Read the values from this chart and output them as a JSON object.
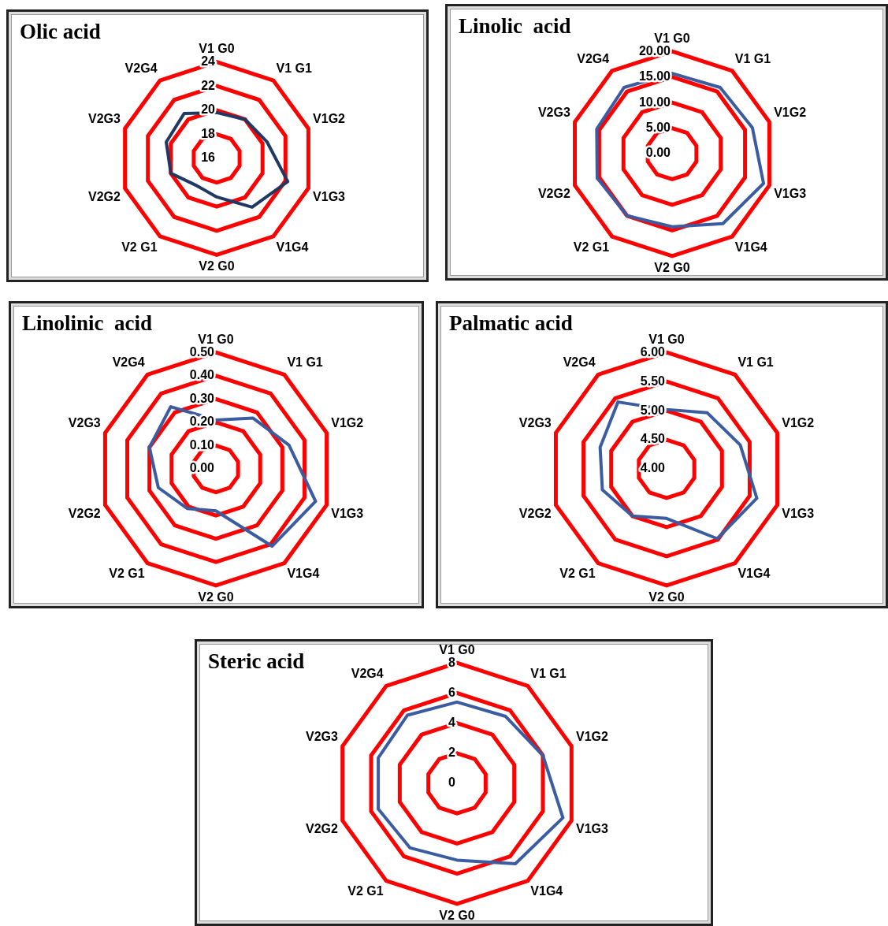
{
  "chart_data": [
    {
      "type": "radar",
      "title": "Olic acid",
      "categories": [
        "V1 G0",
        "V1 G1",
        "V1G2",
        "V1G3",
        "V1G4",
        "V2 G0",
        "V2 G1",
        "V2G2",
        "V2G3",
        "V2G4"
      ],
      "series": [
        {
          "color": "#1f3864",
          "values": [
            19.8,
            20.0,
            20.4,
            22.2,
            21.0,
            19.2,
            18.8,
            20.0,
            20.4,
            20.6
          ]
        }
      ],
      "ylim": [
        16,
        24
      ],
      "yticks": [
        16,
        18,
        20,
        22,
        24
      ],
      "grid": true,
      "legend": false,
      "marker": "none",
      "line_style": "solid"
    },
    {
      "type": "radar",
      "title": "Linolic  acid",
      "categories": [
        "V1 G0",
        "V1 G1",
        "V1G2",
        "V1G3",
        "V1G4",
        "V2 G0",
        "V2 G1",
        "V2G2",
        "V2G3",
        "V2G4"
      ],
      "series": [
        {
          "color": "#3b5ca0",
          "values": [
            15.7,
            16.0,
            16.5,
            18.8,
            16.9,
            14.3,
            15.0,
            15.4,
            15.5,
            16.0
          ]
        }
      ],
      "ylim": [
        0,
        20
      ],
      "yticks": [
        {
          "value": 0,
          "label": "0.00"
        },
        {
          "value": 5,
          "label": "5.00"
        },
        {
          "value": 10,
          "label": "10.00"
        },
        {
          "value": 15,
          "label": "15.00"
        },
        {
          "value": 20,
          "label": "20.00"
        }
      ],
      "grid": true,
      "legend": false,
      "marker": "none",
      "line_style": "solid"
    },
    {
      "type": "radar",
      "title": "Linolinic  acid",
      "categories": [
        "V1 G0",
        "V1 G1",
        "V1G2",
        "V1G3",
        "V1G4",
        "V2 G0",
        "V2 G1",
        "V2G2",
        "V2G3",
        "V2G4"
      ],
      "series": [
        {
          "color": "#3b5ca0",
          "values": [
            0.21,
            0.27,
            0.33,
            0.45,
            0.41,
            0.18,
            0.21,
            0.26,
            0.3,
            0.33
          ]
        }
      ],
      "ylim": [
        0,
        0.5
      ],
      "yticks": [
        {
          "value": 0,
          "label": "0.00"
        },
        {
          "value": 0.1,
          "label": "0.10"
        },
        {
          "value": 0.2,
          "label": "0.20"
        },
        {
          "value": 0.3,
          "label": "0.30"
        },
        {
          "value": 0.4,
          "label": "0.40"
        },
        {
          "value": 0.5,
          "label": "0.50"
        }
      ],
      "grid": true,
      "legend": false,
      "marker": "none",
      "line_style": "solid"
    },
    {
      "type": "radar",
      "title": "Palmatic acid",
      "categories": [
        "V1 G0",
        "V1 G1",
        "V1G2",
        "V1G3",
        "V1G4",
        "V2 G0",
        "V2 G1",
        "V2G2",
        "V2G3",
        "V2G4"
      ],
      "series": [
        {
          "color": "#3b5ca0",
          "values": [
            5.02,
            5.19,
            5.33,
            5.63,
            5.48,
            4.85,
            5.0,
            5.16,
            5.2,
            5.42
          ]
        }
      ],
      "ylim": [
        4,
        6
      ],
      "yticks": [
        {
          "value": 4,
          "label": "4.00"
        },
        {
          "value": 4.5,
          "label": "4.50"
        },
        {
          "value": 5,
          "label": "5.00"
        },
        {
          "value": 5.5,
          "label": "5.50"
        },
        {
          "value": 6,
          "label": "6.00"
        }
      ],
      "grid": true,
      "legend": false,
      "marker": "none",
      "line_style": "solid"
    },
    {
      "type": "radar",
      "title": "Steric acid",
      "categories": [
        "V1 G0",
        "V1 G1",
        "V1G2",
        "V1G3",
        "V1G4",
        "V2 G0",
        "V2 G1",
        "V2G2",
        "V2G3",
        "V2G4"
      ],
      "series": [
        {
          "color": "#3b5ca0",
          "values": [
            5.4,
            5.5,
            6.0,
            7.4,
            6.6,
            5.1,
            5.3,
            5.5,
            5.5,
            5.6
          ]
        }
      ],
      "ylim": [
        0,
        8
      ],
      "yticks": [
        0,
        2,
        4,
        6,
        8
      ],
      "grid": true,
      "legend": false,
      "marker": "none",
      "line_style": "solid"
    }
  ]
}
